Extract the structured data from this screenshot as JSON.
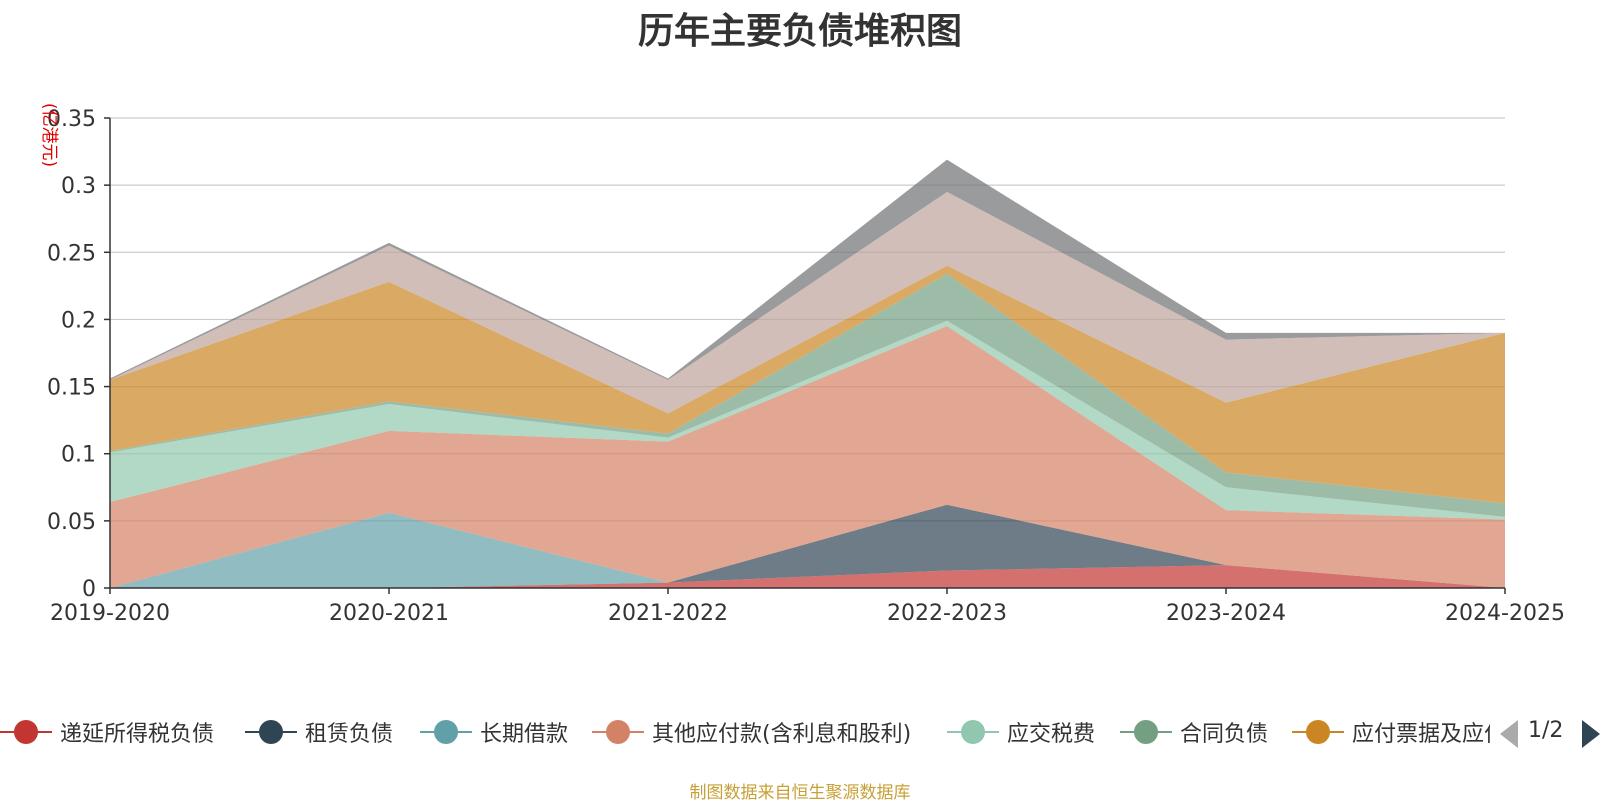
{
  "chart_data": {
    "type": "area",
    "stacked": true,
    "title": "历年主要负债堆积图",
    "ylabel": "(亿港元)",
    "xlabel": "",
    "categories": [
      "2019-2020",
      "2020-2021",
      "2021-2022",
      "2022-2023",
      "2023-2024",
      "2024-2025"
    ],
    "ylim": [
      0,
      0.35
    ],
    "yticks": [
      "0",
      "0.05",
      "0.1",
      "0.15",
      "0.2",
      "0.25",
      "0.3",
      "0.35"
    ],
    "grid": true,
    "series": [
      {
        "name": "递延所得税负债",
        "color": "#c23531",
        "values": [
          0,
          0,
          0.004,
          0.013,
          0.017,
          0
        ]
      },
      {
        "name": "租赁负债",
        "color": "#2f4554",
        "values": [
          0,
          0,
          0,
          0.049,
          0,
          0
        ]
      },
      {
        "name": "长期借款",
        "color": "#61a0a8",
        "values": [
          0,
          0.056,
          0,
          0,
          0,
          0
        ]
      },
      {
        "name": "其他应付款(含利息和股利)",
        "color": "#d48265",
        "values": [
          0.064,
          0.061,
          0.105,
          0.133,
          0.041,
          0.051
        ]
      },
      {
        "name": "应交税费",
        "color": "#91c7ae",
        "values": [
          0.037,
          0.02,
          0.003,
          0.004,
          0.017,
          0.002
        ]
      },
      {
        "name": "合同负债",
        "color": "#749f83",
        "values": [
          0.001,
          0.002,
          0.003,
          0.035,
          0.011,
          0.01
        ]
      },
      {
        "name": "应付票据及应付账款",
        "color": "#ca8622",
        "values": [
          0.053,
          0.089,
          0.015,
          0.006,
          0.052,
          0.127
        ]
      },
      {
        "name": "",
        "color": "#bda29a",
        "values": [
          0,
          0.027,
          0.025,
          0.055,
          0.047,
          0
        ]
      },
      {
        "name": "",
        "color": "#6e7074",
        "values": [
          0.001,
          0.002,
          0.001,
          0.024,
          0.005,
          0
        ]
      }
    ],
    "legend_position": "bottom"
  },
  "legend": {
    "page_indicator": "1/2"
  },
  "footer": {
    "source_note": "制图数据来自恒生聚源数据库"
  }
}
